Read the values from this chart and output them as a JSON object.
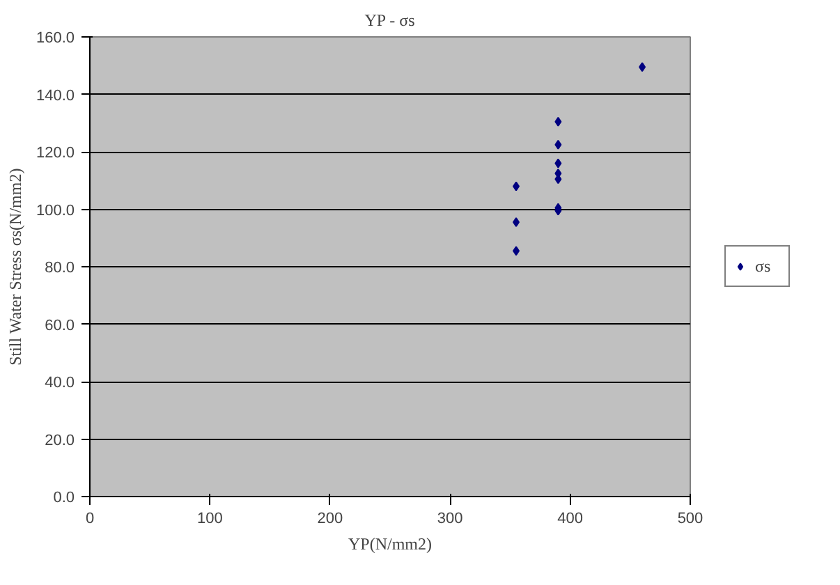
{
  "chart_data": {
    "type": "scatter",
    "title": "YP - σs",
    "xlabel": "YP(N/mm2)",
    "ylabel": "Still Water Stress σs(N/mm2)",
    "xlim": [
      0,
      500
    ],
    "xticks": [
      0,
      100,
      200,
      300,
      400,
      500
    ],
    "ylim": [
      0,
      160
    ],
    "yticks": [
      {
        "value": 0,
        "label": "0.0"
      },
      {
        "value": 20,
        "label": "20.0"
      },
      {
        "value": 40,
        "label": "40.0"
      },
      {
        "value": 60,
        "label": "60.0"
      },
      {
        "value": 80,
        "label": "80.0"
      },
      {
        "value": 100,
        "label": "100.0"
      },
      {
        "value": 120,
        "label": "120.0"
      },
      {
        "value": 140,
        "label": "140.0"
      },
      {
        "value": 160,
        "label": "160.0"
      }
    ],
    "grid": "y",
    "legend": "right",
    "marker": "diamond",
    "series": [
      {
        "name": "σs",
        "color": "#000080",
        "x": [
          355,
          355,
          355,
          390,
          390,
          390,
          390,
          390,
          390,
          390,
          460
        ],
        "values": [
          108,
          95.5,
          85.5,
          130.5,
          122.5,
          116,
          112.5,
          110.5,
          100.5,
          99.5,
          149.5
        ]
      }
    ]
  }
}
